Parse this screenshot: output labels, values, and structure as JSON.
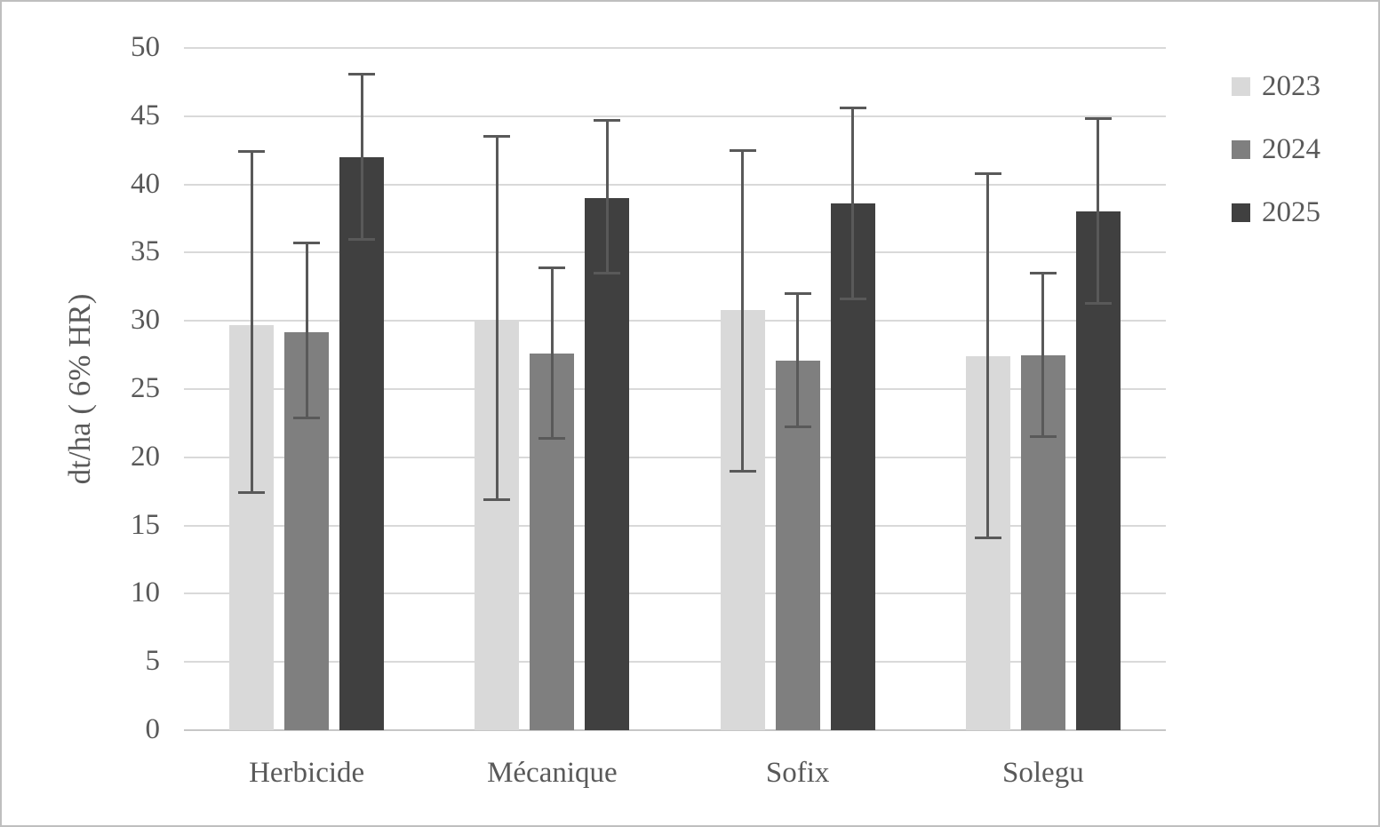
{
  "chart_data": {
    "type": "bar",
    "title": "",
    "categories": [
      "Herbicide",
      "Mécanique",
      "Sofix",
      "Solegu"
    ],
    "series": [
      {
        "name": "2023",
        "color": "#d9d9d9",
        "values": [
          29.7,
          30.1,
          30.8,
          27.4
        ],
        "error_low": [
          17.5,
          17.0,
          19.1,
          14.2
        ],
        "error_high": [
          42.3,
          43.4,
          42.4,
          40.7
        ]
      },
      {
        "name": "2024",
        "color": "#7f7f7f",
        "values": [
          29.2,
          27.6,
          27.1,
          27.5
        ],
        "error_low": [
          23.0,
          21.5,
          22.3,
          21.6
        ],
        "error_high": [
          35.6,
          33.8,
          31.9,
          33.4
        ]
      },
      {
        "name": "2025",
        "color": "#404040",
        "values": [
          42.0,
          39.0,
          38.6,
          38.0
        ],
        "error_low": [
          36.1,
          33.6,
          31.7,
          31.4
        ],
        "error_high": [
          48.0,
          44.6,
          45.5,
          44.7
        ]
      }
    ],
    "xlabel": "",
    "ylabel": "dt/ha ( 6% HR)",
    "ylim": [
      0,
      50
    ],
    "yticks": [
      0,
      5,
      10,
      15,
      20,
      25,
      30,
      35,
      40,
      45,
      50
    ],
    "grid": true,
    "legend_position": "right",
    "gridline_color": "#d9d9d9",
    "error_bar_color": "#595959",
    "text_color": "#595959",
    "bar_colors": {
      "2023": "#d9d9d9",
      "2024": "#7f7f7f",
      "2025": "#404040"
    }
  }
}
